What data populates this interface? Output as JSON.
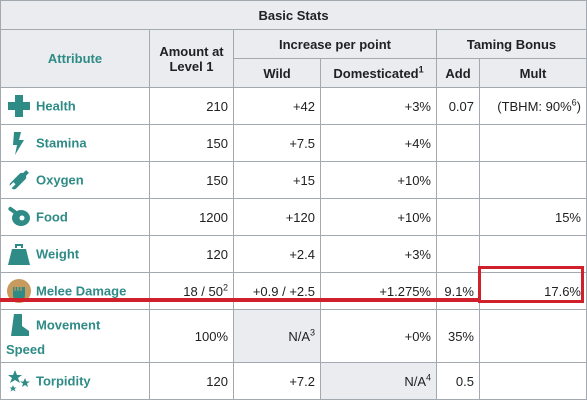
{
  "caption": "Basic Stats",
  "headers": {
    "attribute": "Attribute",
    "amount_line1": "Amount at",
    "amount_line2": "Level 1",
    "increase": "Increase per point",
    "taming": "Taming Bonus",
    "wild": "Wild",
    "domesticated": "Domesticated",
    "domesticated_sup": "1",
    "add": "Add",
    "mult": "Mult"
  },
  "rows": [
    {
      "name": "Health",
      "icon": "health-cross-icon",
      "amount": "210",
      "amount_sup": "",
      "wild": "+42",
      "wild_sup": "",
      "dom": "+3%",
      "dom_sup": "",
      "add": "0.07",
      "mult": "(TBHM: 90%",
      "mult_sup": "6",
      "mult_close": ")"
    },
    {
      "name": "Stamina",
      "icon": "stamina-bolt-icon",
      "amount": "150",
      "wild": "+7.5",
      "dom": "+4%",
      "add": "",
      "mult": ""
    },
    {
      "name": "Oxygen",
      "icon": "oxygen-tank-icon",
      "amount": "150",
      "wild": "+15",
      "dom": "+10%",
      "add": "",
      "mult": ""
    },
    {
      "name": "Food",
      "icon": "food-meat-icon",
      "amount": "1200",
      "wild": "+120",
      "dom": "+10%",
      "add": "",
      "mult": "15%"
    },
    {
      "name": "Weight",
      "icon": "weight-icon",
      "amount": "120",
      "wild": "+2.4",
      "dom": "+3%",
      "add": "",
      "mult": ""
    },
    {
      "name": "Melee Damage",
      "icon": "melee-fist-icon",
      "amount": "18 / 50",
      "amount_sup": "2",
      "wild": "+0.9 / +2.5",
      "dom": "+1.275%",
      "add": "9.1%",
      "mult": "17.6%"
    },
    {
      "name_line1": "Movement",
      "name_line2": "Speed",
      "icon": "movement-boot-icon",
      "amount": "100%",
      "wild": "N/A",
      "wild_sup": "3",
      "dom": "+0%",
      "add": "35%",
      "mult": ""
    },
    {
      "name": "Torpidity",
      "icon": "torpidity-stars-icon",
      "amount": "120",
      "wild": "+7.2",
      "dom": "N/A",
      "dom_sup": "4",
      "add": "0.5",
      "mult": ""
    }
  ],
  "colors": {
    "accent": "#2e8b86",
    "header_bg": "#eaecf0",
    "highlight": "#d0202c"
  }
}
